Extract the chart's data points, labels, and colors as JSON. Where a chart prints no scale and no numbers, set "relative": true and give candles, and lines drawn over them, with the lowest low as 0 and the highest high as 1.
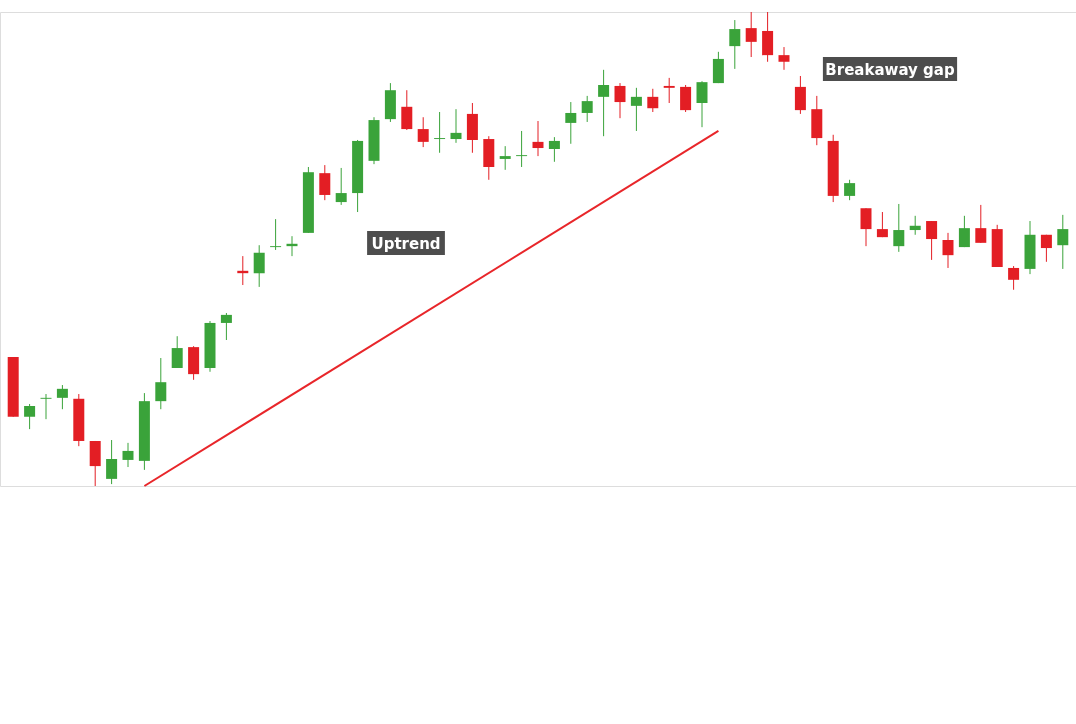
{
  "chart_data": {
    "type": "candlestick",
    "relative": true,
    "categories": [
      null,
      null,
      null,
      null,
      null,
      null,
      null,
      null,
      null,
      null,
      null,
      null,
      null,
      null,
      null,
      null,
      null,
      null,
      null,
      null,
      null,
      null,
      null,
      null,
      null,
      null,
      null,
      null,
      null,
      null,
      null,
      null,
      null,
      null,
      null,
      null,
      null,
      null,
      null,
      null,
      null,
      null,
      null,
      null,
      null,
      null,
      null,
      null,
      null,
      null,
      null,
      null,
      null,
      null,
      null,
      null,
      null,
      null,
      null,
      null,
      null,
      null,
      null,
      null,
      null
    ],
    "ohlc": [
      [
        0.272,
        0.272,
        0.146,
        0.146
      ],
      [
        0.146,
        0.173,
        0.12,
        0.169
      ],
      [
        0.184,
        0.194,
        0.141,
        0.186
      ],
      [
        0.186,
        0.213,
        0.162,
        0.205
      ],
      [
        0.184,
        0.194,
        0.084,
        0.095
      ],
      [
        0.095,
        0.095,
        0.0,
        0.042
      ],
      [
        0.015,
        0.097,
        0.004,
        0.057
      ],
      [
        0.055,
        0.091,
        0.04,
        0.074
      ],
      [
        0.053,
        0.196,
        0.034,
        0.179
      ],
      [
        0.179,
        0.27,
        0.162,
        0.219
      ],
      [
        0.249,
        0.316,
        0.249,
        0.291
      ],
      [
        0.293,
        0.295,
        0.224,
        0.236
      ],
      [
        0.249,
        0.348,
        0.241,
        0.344
      ],
      [
        0.344,
        0.365,
        0.308,
        0.361
      ],
      [
        0.454,
        0.485,
        0.424,
        0.449
      ],
      [
        0.449,
        0.508,
        0.42,
        0.492
      ],
      [
        0.504,
        0.563,
        0.498,
        0.506
      ],
      [
        0.506,
        0.527,
        0.485,
        0.511
      ],
      [
        0.534,
        0.673,
        0.534,
        0.662
      ],
      [
        0.66,
        0.677,
        0.603,
        0.614
      ],
      [
        0.599,
        0.671,
        0.593,
        0.618
      ],
      [
        0.618,
        0.73,
        0.578,
        0.728
      ],
      [
        0.686,
        0.778,
        0.679,
        0.772
      ],
      [
        0.774,
        0.85,
        0.768,
        0.835
      ],
      [
        0.8,
        0.835,
        0.751,
        0.753
      ],
      [
        0.753,
        0.778,
        0.715,
        0.726
      ],
      [
        0.732,
        0.789,
        0.703,
        0.734
      ],
      [
        0.732,
        0.795,
        0.724,
        0.745
      ],
      [
        0.785,
        0.808,
        0.703,
        0.73
      ],
      [
        0.732,
        0.738,
        0.646,
        0.673
      ],
      [
        0.69,
        0.717,
        0.667,
        0.696
      ],
      [
        0.696,
        0.749,
        0.673,
        0.698
      ],
      [
        0.726,
        0.77,
        0.696,
        0.713
      ],
      [
        0.711,
        0.736,
        0.684,
        0.728
      ],
      [
        0.766,
        0.81,
        0.722,
        0.787
      ],
      [
        0.787,
        0.823,
        0.768,
        0.812
      ],
      [
        0.821,
        0.878,
        0.738,
        0.846
      ],
      [
        0.844,
        0.85,
        0.776,
        0.81
      ],
      [
        0.802,
        0.84,
        0.749,
        0.821
      ],
      [
        0.821,
        0.838,
        0.789,
        0.797
      ],
      [
        0.844,
        0.861,
        0.808,
        0.84
      ],
      [
        0.842,
        0.846,
        0.789,
        0.793
      ],
      [
        0.808,
        0.854,
        0.757,
        0.852
      ],
      [
        0.85,
        0.916,
        0.85,
        0.901
      ],
      [
        0.928,
        0.983,
        0.88,
        0.964
      ],
      [
        0.966,
        1.0,
        0.905,
        0.937
      ],
      [
        0.96,
        1.0,
        0.895,
        0.909
      ],
      [
        0.909,
        0.926,
        0.878,
        0.895
      ],
      [
        0.842,
        0.865,
        0.785,
        0.793
      ],
      [
        0.795,
        0.823,
        0.719,
        0.734
      ],
      [
        0.728,
        0.741,
        0.599,
        0.612
      ],
      [
        0.612,
        0.646,
        0.603,
        0.639
      ],
      [
        0.586,
        0.586,
        0.506,
        0.542
      ],
      [
        0.542,
        0.578,
        0.525,
        0.525
      ],
      [
        0.506,
        0.595,
        0.494,
        0.54
      ],
      [
        0.54,
        0.57,
        0.53,
        0.549
      ],
      [
        0.559,
        0.559,
        0.477,
        0.521
      ],
      [
        0.519,
        0.534,
        0.46,
        0.487
      ],
      [
        0.504,
        0.57,
        0.504,
        0.544
      ],
      [
        0.544,
        0.593,
        0.513,
        0.513
      ],
      [
        0.542,
        0.551,
        0.462,
        0.462
      ],
      [
        0.46,
        0.464,
        0.414,
        0.435
      ],
      [
        0.458,
        0.559,
        0.447,
        0.53
      ],
      [
        0.53,
        0.53,
        0.473,
        0.502
      ],
      [
        0.508,
        0.572,
        0.458,
        0.542
      ]
    ],
    "colors": [
      "#e31e24",
      "#3aa33a",
      "#3aa33a",
      "#3aa33a",
      "#e31e24",
      "#e31e24",
      "#3aa33a",
      "#3aa33a",
      "#3aa33a",
      "#3aa33a",
      "#3aa33a",
      "#e31e24",
      "#3aa33a",
      "#3aa33a",
      "#e31e24",
      "#3aa33a",
      "#3aa33a",
      "#3aa33a",
      "#3aa33a",
      "#e31e24",
      "#3aa33a",
      "#3aa33a",
      "#3aa33a",
      "#3aa33a",
      "#e31e24",
      "#e31e24",
      "#3aa33a",
      "#3aa33a",
      "#e31e24",
      "#e31e24",
      "#3aa33a",
      "#3aa33a",
      "#e31e24",
      "#3aa33a",
      "#3aa33a",
      "#3aa33a",
      "#3aa33a",
      "#e31e24",
      "#3aa33a",
      "#e31e24",
      "#e31e24",
      "#e31e24",
      "#3aa33a",
      "#3aa33a",
      "#3aa33a",
      "#e31e24",
      "#e31e24",
      "#e31e24",
      "#e31e24",
      "#e31e24",
      "#e31e24",
      "#3aa33a",
      "#e31e24",
      "#e31e24",
      "#3aa33a",
      "#3aa33a",
      "#e31e24",
      "#e31e24",
      "#3aa33a",
      "#e31e24",
      "#e31e24",
      "#e31e24",
      "#3aa33a",
      "#e31e24",
      "#3aa33a"
    ],
    "series": [
      {
        "type": "line",
        "color": "#e8262a",
        "values": [
          null,
          null,
          null,
          null,
          null,
          null,
          null,
          null,
          0.0,
          null,
          null,
          null,
          null,
          null,
          null,
          null,
          null,
          null,
          null,
          null,
          null,
          null,
          null,
          null,
          null,
          null,
          null,
          null,
          null,
          null,
          null,
          null,
          null,
          null,
          null,
          null,
          null,
          null,
          null,
          null,
          null,
          null,
          null,
          0.749,
          null,
          null,
          null,
          null,
          null,
          null,
          null,
          null,
          null,
          null,
          null,
          null,
          null,
          null,
          null,
          null,
          null,
          null,
          null,
          null,
          null
        ]
      }
    ],
    "annotations": [
      "Uptrend",
      "Breakaway gap"
    ],
    "grid": false
  }
}
